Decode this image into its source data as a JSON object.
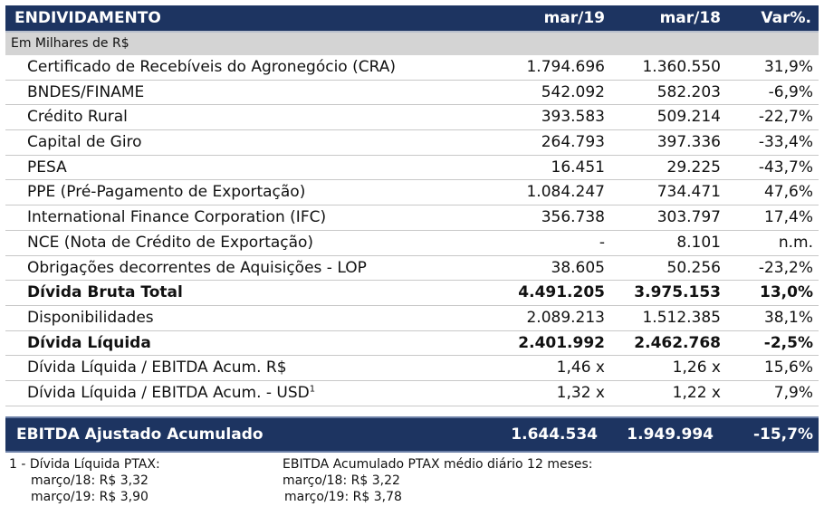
{
  "header": {
    "title": "ENDIVIDAMENTO",
    "col1": "mar/19",
    "col2": "mar/18",
    "col3": "Var%."
  },
  "subheader": "Em Milhares de R$",
  "rows": [
    {
      "label": "Certificado de Recebíveis do Agronegócio (CRA)",
      "v1": "1.794.696",
      "v2": "1.360.550",
      "v3": "31,9%",
      "bold": false
    },
    {
      "label": "BNDES/FINAME",
      "v1": "542.092",
      "v2": "582.203",
      "v3": "-6,9%",
      "bold": false
    },
    {
      "label": "Crédito Rural",
      "v1": "393.583",
      "v2": "509.214",
      "v3": "-22,7%",
      "bold": false
    },
    {
      "label": "Capital de Giro",
      "v1": "264.793",
      "v2": "397.336",
      "v3": "-33,4%",
      "bold": false
    },
    {
      "label": "PESA",
      "v1": "16.451",
      "v2": "29.225",
      "v3": "-43,7%",
      "bold": false
    },
    {
      "label": "PPE (Pré-Pagamento de Exportação)",
      "v1": "1.084.247",
      "v2": "734.471",
      "v3": "47,6%",
      "bold": false
    },
    {
      "label": "International Finance Corporation (IFC)",
      "v1": "356.738",
      "v2": "303.797",
      "v3": "17,4%",
      "bold": false
    },
    {
      "label": "NCE (Nota de Crédito de Exportação)",
      "v1": "-",
      "v2": "8.101",
      "v3": "n.m.",
      "bold": false
    },
    {
      "label": "Obrigações decorrentes de Aquisições - LOP",
      "v1": "38.605",
      "v2": "50.256",
      "v3": "-23,2%",
      "bold": false
    },
    {
      "label": "Dívida Bruta Total",
      "v1": "4.491.205",
      "v2": "3.975.153",
      "v3": "13,0%",
      "bold": true
    },
    {
      "label": "Disponibilidades",
      "v1": "2.089.213",
      "v2": "1.512.385",
      "v3": "38,1%",
      "bold": false
    },
    {
      "label": "Dívida Líquida",
      "v1": "2.401.992",
      "v2": "2.462.768",
      "v3": "-2,5%",
      "bold": true
    },
    {
      "label": "Dívida Líquida / EBITDA Acum. R$",
      "v1": "1,46 x",
      "v2": "1,26 x",
      "v3": "15,6%",
      "bold": false
    },
    {
      "label": "Dívida Líquida / EBITDA Acum. - USD",
      "sup": "1",
      "v1": "1,32 x",
      "v2": "1,22 x",
      "v3": "7,9%",
      "bold": false
    }
  ],
  "ebitda": {
    "label": "EBITDA Ajustado Acumulado",
    "v1": "1.644.534",
    "v2": "1.949.994",
    "v3": "-15,7%"
  },
  "footnotes": {
    "left": [
      "1 - Dívida Líquida PTAX:",
      "março/18: R$ 3,32",
      "março/19: R$ 3,90"
    ],
    "right": [
      "EBITDA Acumulado PTAX médio diário 12 meses:",
      "março/18: R$ 3,22",
      "março/19: R$ 3,78"
    ]
  }
}
